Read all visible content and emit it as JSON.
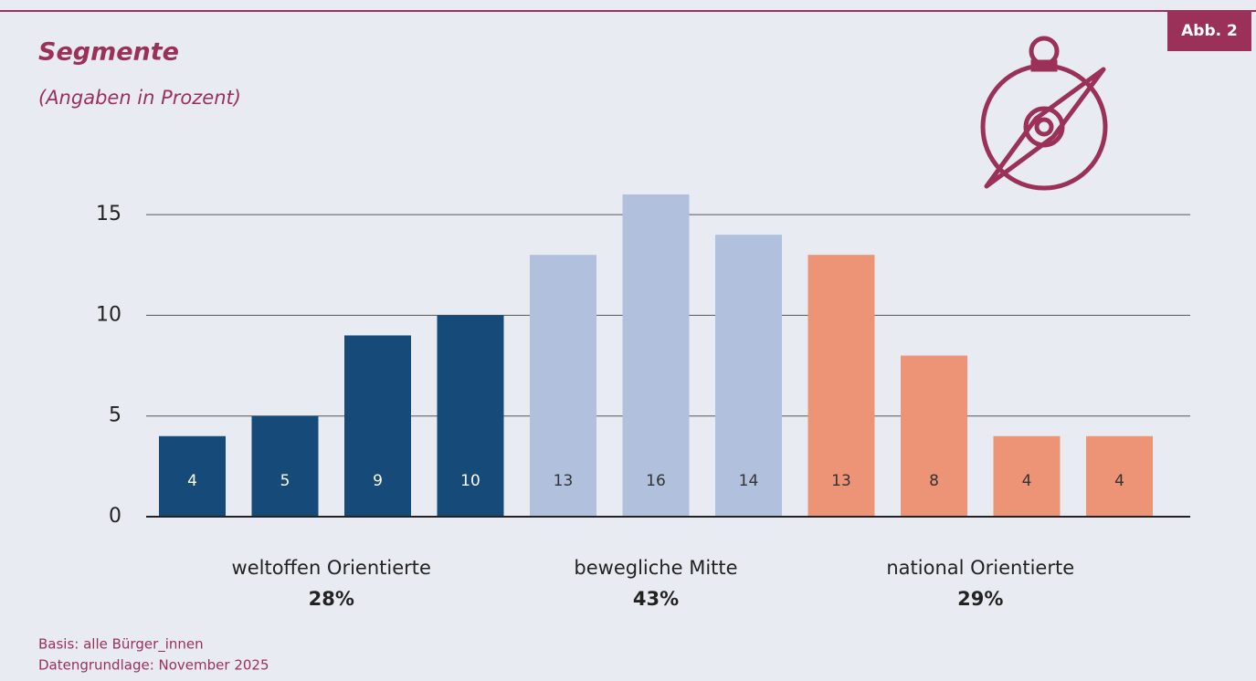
{
  "chart_data": {
    "type": "bar",
    "title": "Segmente",
    "subtitle": "(Angaben in Prozent)",
    "badge": "Abb. 2",
    "notes": [
      "Basis: alle Bürger_innen",
      "Datengrundlage: November 2025"
    ],
    "ylim": [
      0,
      16
    ],
    "yticks": [
      0,
      5,
      10,
      15
    ],
    "grid": true,
    "series": [
      {
        "name": "weltoffen Orientierte",
        "color": "#164a78",
        "label_color": "#ffffff",
        "values": [
          4,
          5,
          9,
          10
        ],
        "share": 28,
        "share_label": "28%"
      },
      {
        "name": "bewegliche Mitte",
        "color": "#b0c0dd",
        "label_color": "#333333",
        "values": [
          13,
          16,
          14
        ],
        "share": 43,
        "share_label": "43%"
      },
      {
        "name": "national Orientierte",
        "color": "#ed9477",
        "label_color": "#333333",
        "values": [
          13,
          8,
          4,
          4
        ],
        "share": 29,
        "share_label": "29%"
      }
    ]
  }
}
